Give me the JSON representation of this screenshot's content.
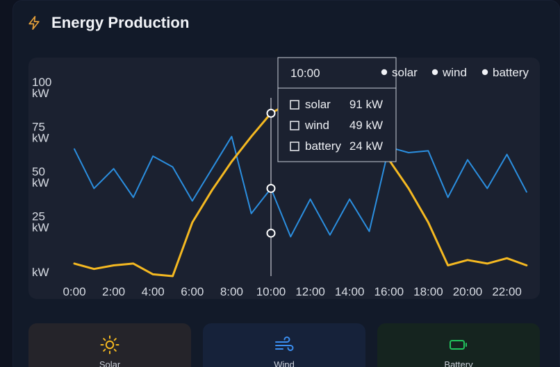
{
  "header": {
    "title": "Energy Production",
    "icon": "lightning-bolt-icon",
    "icon_color": "#e8a23a"
  },
  "chart_data": {
    "type": "line",
    "title": "",
    "xlabel": "",
    "ylabel": "",
    "x": [
      "0:00",
      "1:00",
      "2:00",
      "3:00",
      "4:00",
      "5:00",
      "6:00",
      "7:00",
      "8:00",
      "9:00",
      "10:00",
      "11:00",
      "12:00",
      "13:00",
      "14:00",
      "15:00",
      "16:00",
      "17:00",
      "18:00",
      "19:00",
      "20:00",
      "21:00",
      "22:00",
      "23:00"
    ],
    "x_tick_labels": [
      "0:00",
      "2:00",
      "4:00",
      "6:00",
      "8:00",
      "10:00",
      "12:00",
      "14:00",
      "16:00",
      "18:00",
      "20:00",
      "22:00"
    ],
    "y_tick_labels": [
      {
        "value": 100,
        "label": "100\nkW"
      },
      {
        "value": 75,
        "label": "75\nkW"
      },
      {
        "value": 50,
        "label": "50\nkW"
      },
      {
        "value": 25,
        "label": "25\nkW"
      },
      {
        "value": 0,
        "label": "\nkW"
      }
    ],
    "ylim": [
      0,
      100
    ],
    "series": [
      {
        "name": "solar",
        "color": "#f5b921",
        "values": [
          7,
          4,
          6,
          7,
          1,
          0,
          30,
          48,
          64,
          78,
          91,
          97,
          100,
          97,
          90,
          80,
          65,
          49,
          30,
          6,
          9,
          7,
          10,
          6
        ]
      },
      {
        "name": "wind",
        "color": "#2b8fe0",
        "values": [
          71,
          49,
          60,
          44,
          67,
          61,
          42,
          60,
          78,
          35,
          49,
          22,
          43,
          23,
          43,
          25,
          72,
          69,
          70,
          44,
          65,
          49,
          68,
          47
        ]
      }
    ],
    "legend": {
      "position": "top-right",
      "entries": [
        "solar",
        "wind",
        "battery"
      ]
    },
    "grid": false,
    "tooltip": {
      "x_label": "10:00",
      "rows": [
        {
          "name": "solar",
          "value": "91 kW"
        },
        {
          "name": "wind",
          "value": "49 kW"
        },
        {
          "name": "battery",
          "value": "24 kW"
        }
      ],
      "hover_x": "10:00",
      "marker_values": [
        91,
        49,
        24
      ]
    }
  },
  "tiles": [
    {
      "label": "Solar",
      "icon": "sun-icon",
      "color": "#f5b921"
    },
    {
      "label": "Wind",
      "icon": "wind-icon",
      "color": "#3b8ef0"
    },
    {
      "label": "Battery",
      "icon": "battery-icon",
      "color": "#22c55e"
    }
  ]
}
